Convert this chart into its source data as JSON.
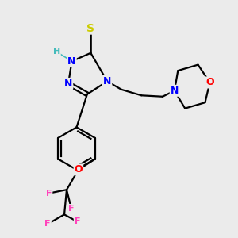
{
  "bg_color": "#ebebeb",
  "bond_color": "#000000",
  "atom_colors": {
    "N": "#0000ff",
    "O": "#ff0000",
    "S": "#cccc00",
    "F": "#ff44bb",
    "H": "#44bbbb"
  }
}
